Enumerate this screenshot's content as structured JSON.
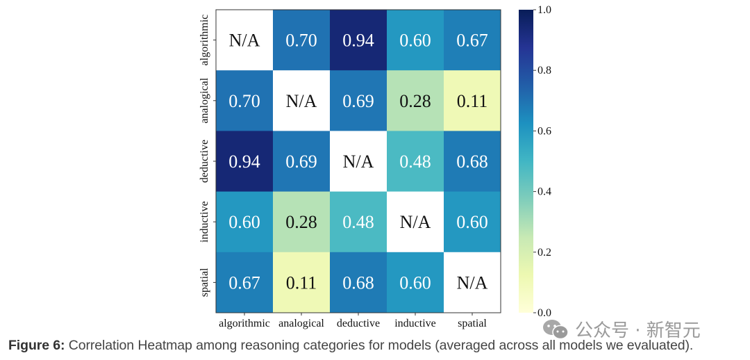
{
  "chart_data": {
    "type": "heatmap",
    "title": "",
    "row_labels": [
      "algorithmic",
      "analogical",
      "deductive",
      "inductive",
      "spatial"
    ],
    "col_labels": [
      "algorithmic",
      "analogical",
      "deductive",
      "inductive",
      "spatial"
    ],
    "values": [
      [
        null,
        0.7,
        0.94,
        0.6,
        0.67
      ],
      [
        0.7,
        null,
        0.69,
        0.28,
        0.11
      ],
      [
        0.94,
        0.69,
        null,
        0.48,
        0.68
      ],
      [
        0.6,
        0.28,
        0.48,
        null,
        0.6
      ],
      [
        0.67,
        0.11,
        0.68,
        0.6,
        null
      ]
    ],
    "null_label": "N/A",
    "value_format": "0.00",
    "colormap": "YlGnBu",
    "color_range": [
      0.0,
      1.0
    ],
    "colorbar": {
      "ticks": [
        0.0,
        0.2,
        0.4,
        0.6,
        0.8,
        1.0
      ],
      "tick_labels": [
        "0.0",
        "0.2",
        "0.4",
        "0.6",
        "0.8",
        "1.0"
      ],
      "placement": "right"
    },
    "xlabel": "",
    "ylabel": ""
  },
  "caption": {
    "label": "Figure 6:",
    "text": " Correlation Heatmap among reasoning categories for models (averaged across all models we evaluated)."
  },
  "watermark": {
    "icon": "wechat-icon",
    "text": "公众号 · 新智元"
  }
}
